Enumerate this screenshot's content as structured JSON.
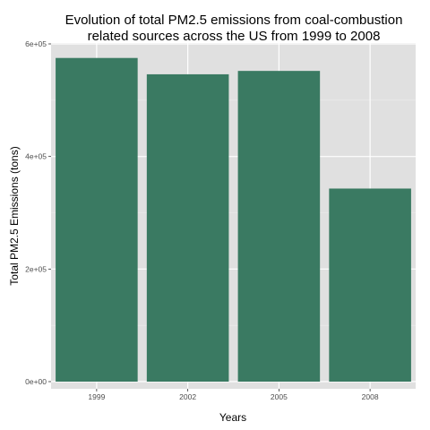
{
  "chart_data": {
    "type": "bar",
    "title_lines": [
      "Evolution of total PM2.5 emissions from coal-combustion",
      "related sources across the US from 1999 to 2008"
    ],
    "xlabel": "Years",
    "ylabel": "Total PM2.5 Emissions (tons)",
    "categories": [
      "1999",
      "2002",
      "2005",
      "2008"
    ],
    "values": [
      575000,
      546000,
      552000,
      343000
    ],
    "ylim": [
      0,
      600000
    ],
    "yticks": [
      0,
      200000,
      400000,
      600000
    ],
    "ytick_labels": [
      "0e+00",
      "2e+05",
      "4e+05",
      "6e+05"
    ],
    "grid": true,
    "colors": {
      "bar": "#3a7a62",
      "panel": "#e0e0e0",
      "grid_major": "#ffffff",
      "grid_minor": "#eeeeee",
      "tick_label": "#4d4d4d"
    }
  }
}
